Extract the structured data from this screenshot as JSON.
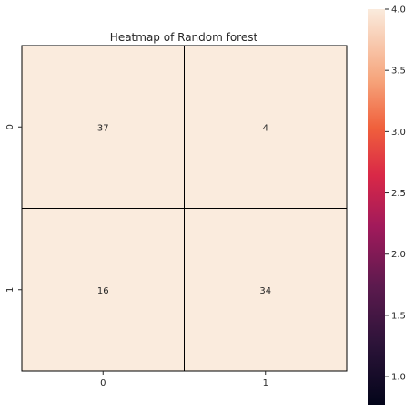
{
  "chart_data": {
    "type": "heatmap",
    "title": "Heatmap of Random forest",
    "x_categories": [
      "0",
      "1"
    ],
    "y_categories": [
      "0",
      "1"
    ],
    "values": [
      [
        37,
        4
      ],
      [
        16,
        34
      ]
    ],
    "annotations": [
      [
        "37",
        "4"
      ],
      [
        "16",
        "34"
      ]
    ],
    "xlabel": "",
    "ylabel": "",
    "cell_color": "#faebdd",
    "grid": true,
    "colorbar": {
      "range": [
        0.77,
        4.0
      ],
      "ticks": [
        "1.0",
        "1.5",
        "2.0",
        "2.5",
        "3.0",
        "3.5",
        "4.0"
      ],
      "tick_values": [
        1.0,
        1.5,
        2.0,
        2.5,
        3.0,
        3.5,
        4.0
      ],
      "colormap": "rocket",
      "placement": "right"
    }
  }
}
